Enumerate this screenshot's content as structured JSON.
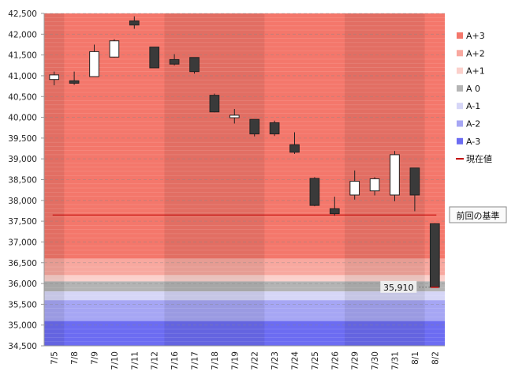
{
  "chart_data": {
    "type": "candlestick",
    "title": "",
    "xlabel": "",
    "ylabel": "",
    "ylim": [
      34500,
      42500
    ],
    "y_ticks": [
      34500,
      35000,
      35500,
      36000,
      36500,
      37000,
      37500,
      38000,
      38500,
      39000,
      39500,
      40000,
      40500,
      41000,
      41500,
      42000,
      42500
    ],
    "y_tick_labels": [
      "34,500",
      "35,000",
      "35,500",
      "36,000",
      "36,500",
      "37,000",
      "37,500",
      "38,000",
      "38,500",
      "39,000",
      "39,500",
      "40,000",
      "40,500",
      "41,000",
      "41,500",
      "42,000",
      "42,500"
    ],
    "categories": [
      "7/5",
      "7/8",
      "7/9",
      "7/10",
      "7/11",
      "7/12",
      "7/16",
      "7/17",
      "7/18",
      "7/19",
      "7/22",
      "7/23",
      "7/24",
      "7/25",
      "7/26",
      "7/29",
      "7/30",
      "7/31",
      "8/1",
      "8/2"
    ],
    "candles": [
      {
        "date": "7/5",
        "open": 40910,
        "high": 41100,
        "low": 40770,
        "close": 41020
      },
      {
        "date": "7/8",
        "open": 40880,
        "high": 41100,
        "low": 40780,
        "close": 40820
      },
      {
        "date": "7/9",
        "open": 40980,
        "high": 41750,
        "low": 40980,
        "close": 41580
      },
      {
        "date": "7/10",
        "open": 41450,
        "high": 41880,
        "low": 41440,
        "close": 41840
      },
      {
        "date": "7/11",
        "open": 42320,
        "high": 42430,
        "low": 42130,
        "close": 42220
      },
      {
        "date": "7/12",
        "open": 41690,
        "high": 41690,
        "low": 41190,
        "close": 41190
      },
      {
        "date": "7/16",
        "open": 41390,
        "high": 41520,
        "low": 41250,
        "close": 41280
      },
      {
        "date": "7/17",
        "open": 41440,
        "high": 41440,
        "low": 41050,
        "close": 41100
      },
      {
        "date": "7/18",
        "open": 40530,
        "high": 40570,
        "low": 40120,
        "close": 40130
      },
      {
        "date": "7/19",
        "open": 39990,
        "high": 40200,
        "low": 39850,
        "close": 40050
      },
      {
        "date": "7/22",
        "open": 39950,
        "high": 39950,
        "low": 39540,
        "close": 39600
      },
      {
        "date": "7/23",
        "open": 39870,
        "high": 39920,
        "low": 39550,
        "close": 39600
      },
      {
        "date": "7/24",
        "open": 39340,
        "high": 39640,
        "low": 39120,
        "close": 39160
      },
      {
        "date": "7/25",
        "open": 38530,
        "high": 38560,
        "low": 37860,
        "close": 37880
      },
      {
        "date": "7/26",
        "open": 37800,
        "high": 38090,
        "low": 37630,
        "close": 37680
      },
      {
        "date": "7/29",
        "open": 38130,
        "high": 38720,
        "low": 38020,
        "close": 38460
      },
      {
        "date": "7/30",
        "open": 38230,
        "high": 38560,
        "low": 38120,
        "close": 38520
      },
      {
        "date": "7/31",
        "open": 38130,
        "high": 39190,
        "low": 37980,
        "close": 39100
      },
      {
        "date": "8/1",
        "open": 38780,
        "high": 38780,
        "low": 37740,
        "close": 38130
      },
      {
        "date": "8/2",
        "open": 37440,
        "high": 37450,
        "low": 35900,
        "close": 35910
      }
    ],
    "up_color": "#ffffff",
    "down_color": "#3a3a3a",
    "bands": [
      {
        "name": "A+3",
        "from": 36600,
        "to": 42500,
        "color": "#f4776b"
      },
      {
        "name": "A+2",
        "from": 36200,
        "to": 36600,
        "color": "#f8a89f"
      },
      {
        "name": "A+1",
        "from": 36050,
        "to": 36200,
        "color": "#fbd0cb"
      },
      {
        "name": "A 0",
        "from": 35810,
        "to": 36050,
        "color": "#b4b4b4"
      },
      {
        "name": "A-1",
        "from": 35600,
        "to": 35810,
        "color": "#d6d6f7"
      },
      {
        "name": "A-2",
        "from": 35100,
        "to": 35600,
        "color": "#a6a6f4"
      },
      {
        "name": "A-3",
        "from": 34500,
        "to": 35100,
        "color": "#6c6cf2"
      }
    ],
    "shaded_weeks": [
      [
        0,
        0
      ],
      [
        6,
        10
      ],
      [
        15,
        18
      ]
    ],
    "reference_line": {
      "value": 37650,
      "label": "前回の基準",
      "color": "#c00000"
    },
    "current_value": {
      "value": 35910,
      "label": "35,910"
    },
    "legend": [
      {
        "label": "A+3",
        "color": "#f4776b",
        "kind": "box"
      },
      {
        "label": "A+2",
        "color": "#f8a89f",
        "kind": "box"
      },
      {
        "label": "A+1",
        "color": "#fbd0cb",
        "kind": "box"
      },
      {
        "label": "A 0",
        "color": "#b4b4b4",
        "kind": "box"
      },
      {
        "label": "A-1",
        "color": "#d6d6f7",
        "kind": "box"
      },
      {
        "label": "A-2",
        "color": "#a6a6f4",
        "kind": "box"
      },
      {
        "label": "A-3",
        "color": "#6c6cf2",
        "kind": "box"
      },
      {
        "label": "現在値",
        "color": "#c00000",
        "kind": "line"
      }
    ],
    "legend_position": "right"
  }
}
